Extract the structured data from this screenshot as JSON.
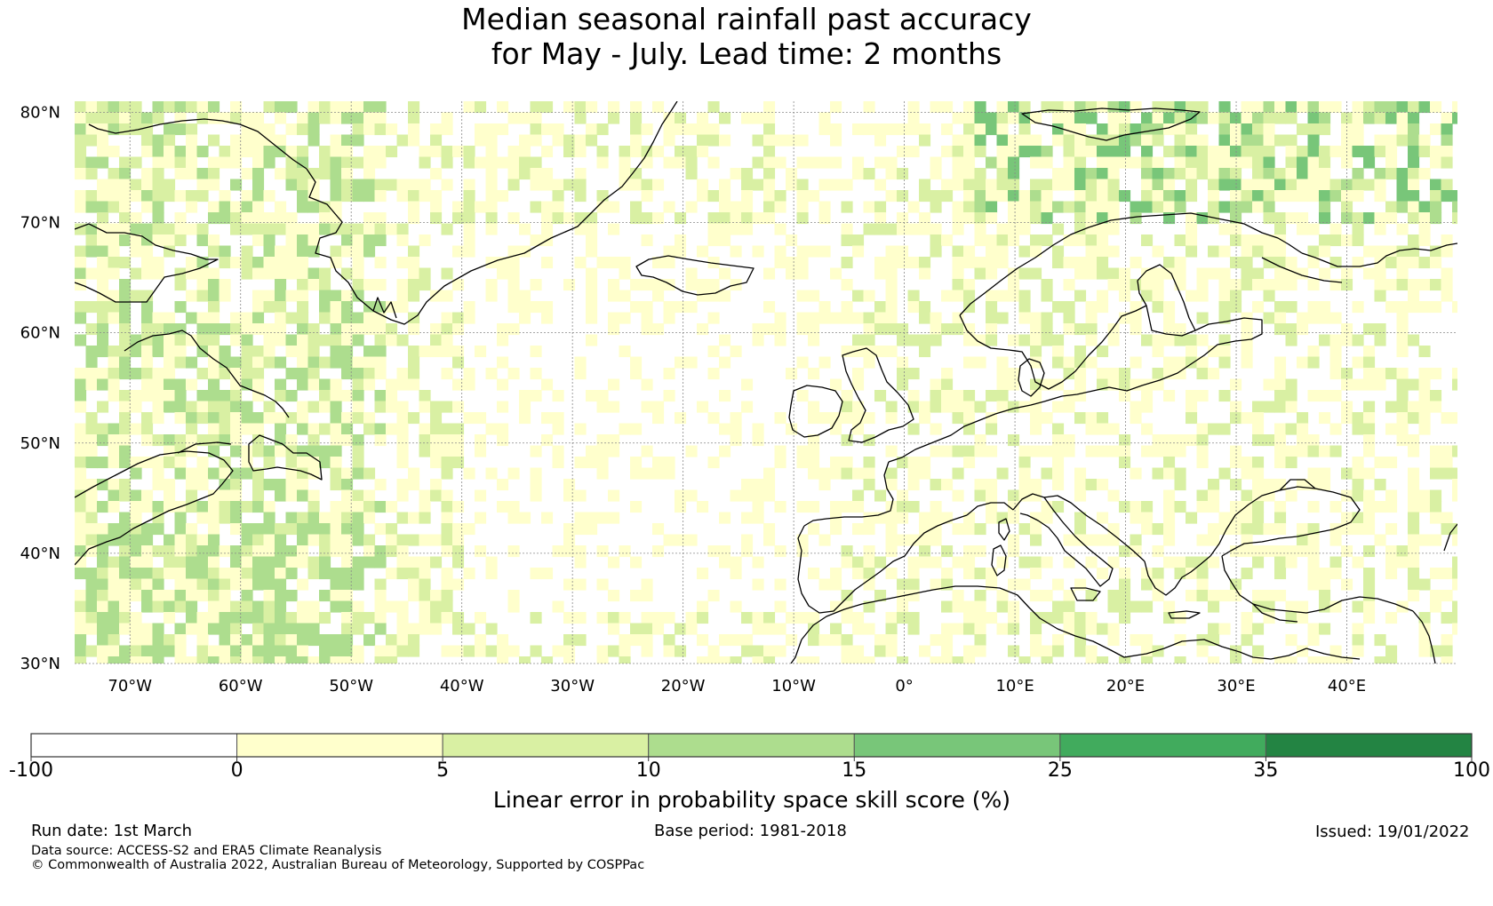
{
  "title": {
    "line1": "Median seasonal rainfall past accuracy",
    "line2": "for May - July. Lead time: 2 months"
  },
  "map": {
    "lon_range": [
      -75,
      50
    ],
    "lat_range": [
      30,
      81
    ],
    "lat_ticks": [
      {
        "value": 80,
        "label": "80°N"
      },
      {
        "value": 70,
        "label": "70°N"
      },
      {
        "value": 60,
        "label": "60°N"
      },
      {
        "value": 50,
        "label": "50°N"
      },
      {
        "value": 40,
        "label": "40°N"
      },
      {
        "value": 30,
        "label": "30°N"
      }
    ],
    "lon_ticks": [
      {
        "value": -70,
        "label": "70°W"
      },
      {
        "value": -60,
        "label": "60°W"
      },
      {
        "value": -50,
        "label": "50°W"
      },
      {
        "value": -40,
        "label": "40°W"
      },
      {
        "value": -30,
        "label": "30°W"
      },
      {
        "value": -20,
        "label": "20°W"
      },
      {
        "value": -10,
        "label": "10°W"
      },
      {
        "value": 0,
        "label": "0°"
      },
      {
        "value": 10,
        "label": "10°E"
      },
      {
        "value": 20,
        "label": "20°E"
      },
      {
        "value": 30,
        "label": "30°E"
      },
      {
        "value": 40,
        "label": "40°E"
      }
    ],
    "grid": true
  },
  "colorbar": {
    "label": "Linear error in probability space skill score (%)",
    "tick_labels": [
      "-100",
      "0",
      "5",
      "10",
      "15",
      "25",
      "35",
      "100"
    ],
    "bins": [
      {
        "from": -100,
        "to": 0,
        "color": "#ffffff"
      },
      {
        "from": 0,
        "to": 5,
        "color": "#ffffcc"
      },
      {
        "from": 5,
        "to": 10,
        "color": "#d9f0a3"
      },
      {
        "from": 10,
        "to": 15,
        "color": "#addd8e"
      },
      {
        "from": 15,
        "to": 25,
        "color": "#78c679"
      },
      {
        "from": 25,
        "to": 35,
        "color": "#41ab5d"
      },
      {
        "from": 35,
        "to": 100,
        "color": "#238443"
      }
    ]
  },
  "footer": {
    "run_date": "Run date: 1st March",
    "base_period": "Base period: 1981-2018",
    "issued": "Issued: 19/01/2022",
    "data_source": "Data source: ACCESS-S2 and ERA5 Climate Reanalysis",
    "copyright": "© Commonwealth of Australia 2022, Australian Bureau of Meteorology, Supported by COSPPac"
  }
}
